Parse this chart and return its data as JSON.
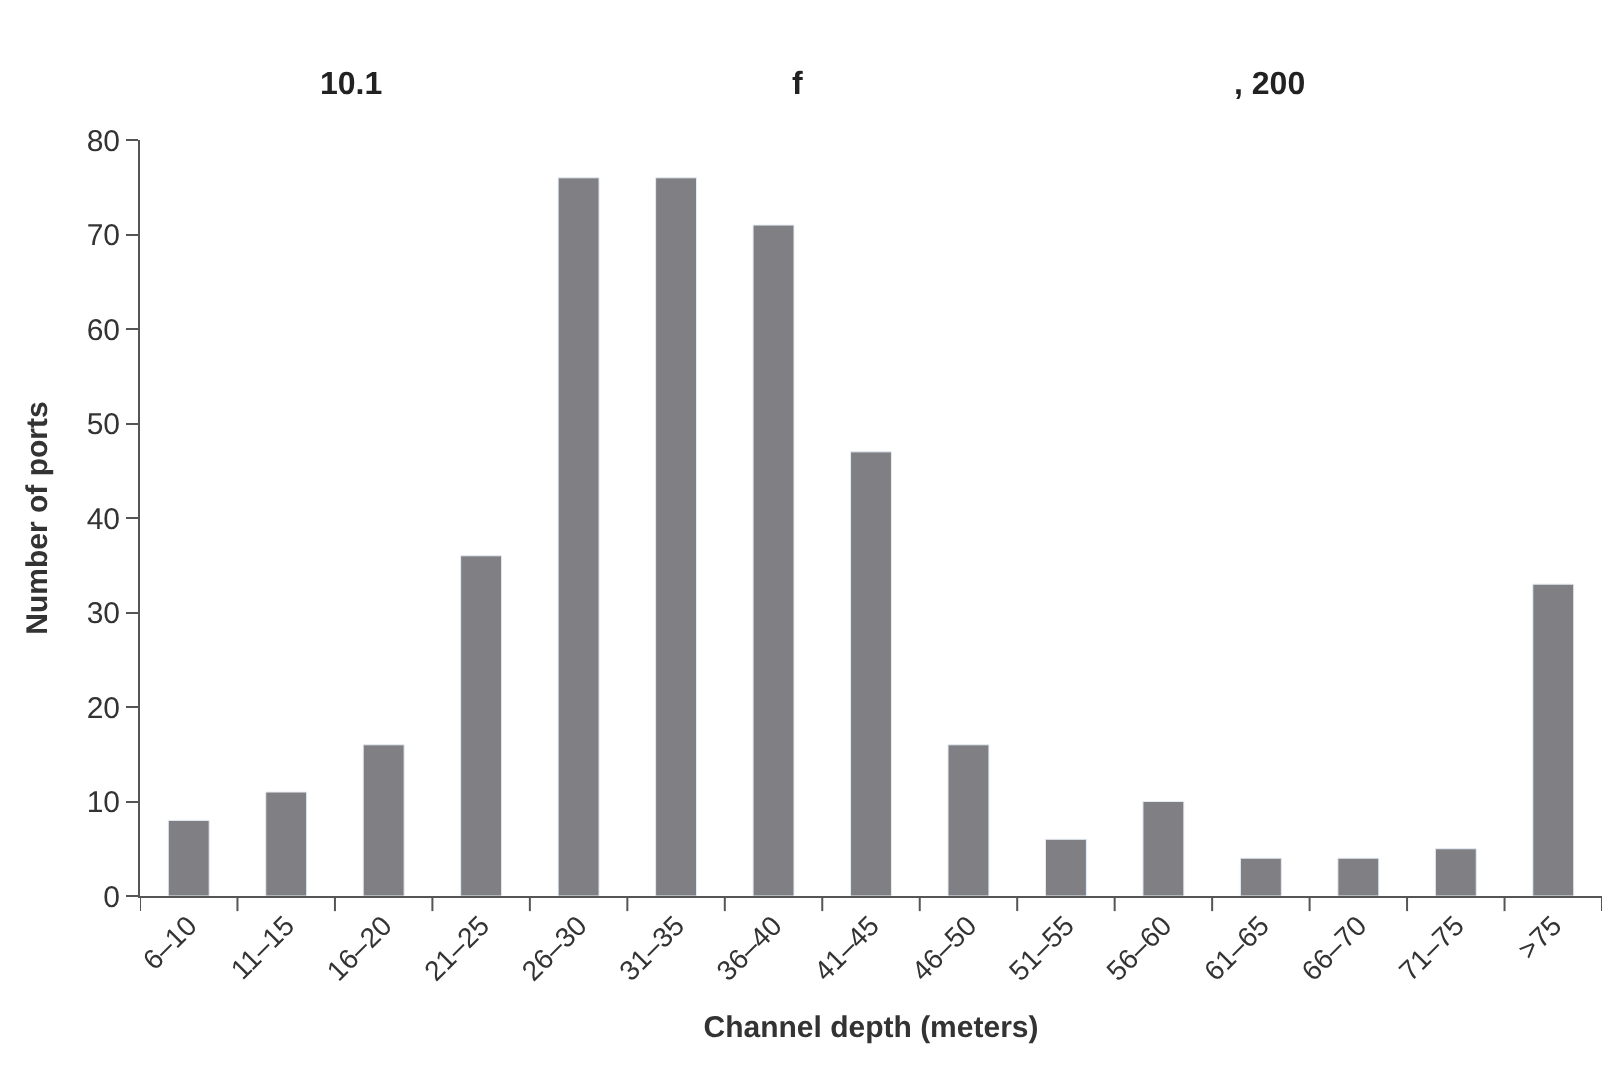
{
  "chart_data": {
    "type": "bar",
    "categories": [
      "6–10",
      "11–15",
      "16–20",
      "21–25",
      "26–30",
      "31–35",
      "36–40",
      "41–45",
      "46–50",
      "51–55",
      "56–60",
      "61–65",
      "66–70",
      "71–75",
      ">75"
    ],
    "values": [
      8,
      11,
      16,
      36,
      76,
      76,
      71,
      47,
      16,
      6,
      10,
      4,
      4,
      5,
      33
    ],
    "color": "#808084",
    "xlabel": "Channel depth (meters)",
    "ylabel": "Number of ports",
    "ylim": [
      0,
      80
    ],
    "yticks": [
      0,
      10,
      20,
      30,
      40,
      50,
      60,
      70,
      80
    ],
    "annotations": [
      "10.1",
      "f",
      ", 200"
    ]
  }
}
